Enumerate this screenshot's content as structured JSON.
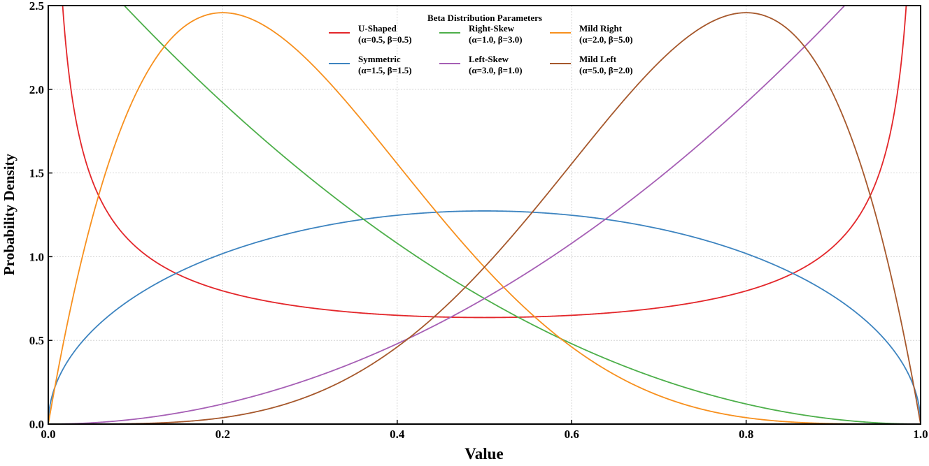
{
  "chart_data": {
    "type": "line",
    "title": "",
    "xlabel": "Value",
    "ylabel": "Probability Density",
    "xlim": [
      0.0,
      1.0
    ],
    "ylim": [
      0.0,
      2.5
    ],
    "xticks": [
      "0.0",
      "0.2",
      "0.4",
      "0.6",
      "0.8",
      "1.0"
    ],
    "yticks": [
      "0.0",
      "0.5",
      "1.0",
      "1.5",
      "2.0",
      "2.5"
    ],
    "grid": true,
    "legend": {
      "title": "Beta Distribution Parameters",
      "placement": "top-center",
      "columns": 3
    },
    "function": "Beta probability density f(x; α, β)",
    "series": [
      {
        "name": "U-Shaped",
        "params": "(α=0.5, β=0.5)",
        "alpha": 0.5,
        "beta": 0.5,
        "color": "#e3262a"
      },
      {
        "name": "Symmetric",
        "params": "(α=1.5, β=1.5)",
        "alpha": 1.5,
        "beta": 1.5,
        "color": "#3d84c0"
      },
      {
        "name": "Right-Skew",
        "params": "(α=1.0, β=3.0)",
        "alpha": 1.0,
        "beta": 3.0,
        "color": "#4daf4a"
      },
      {
        "name": "Left-Skew",
        "params": "(α=3.0, β=1.0)",
        "alpha": 3.0,
        "beta": 1.0,
        "color": "#a65fb5"
      },
      {
        "name": "Mild Right",
        "params": "(α=2.0, β=5.0)",
        "alpha": 2.0,
        "beta": 5.0,
        "color": "#f7901e"
      },
      {
        "name": "Mild Left",
        "params": "(α=5.0, β=2.0)",
        "alpha": 5.0,
        "beta": 2.0,
        "color": "#a6582c"
      }
    ]
  }
}
